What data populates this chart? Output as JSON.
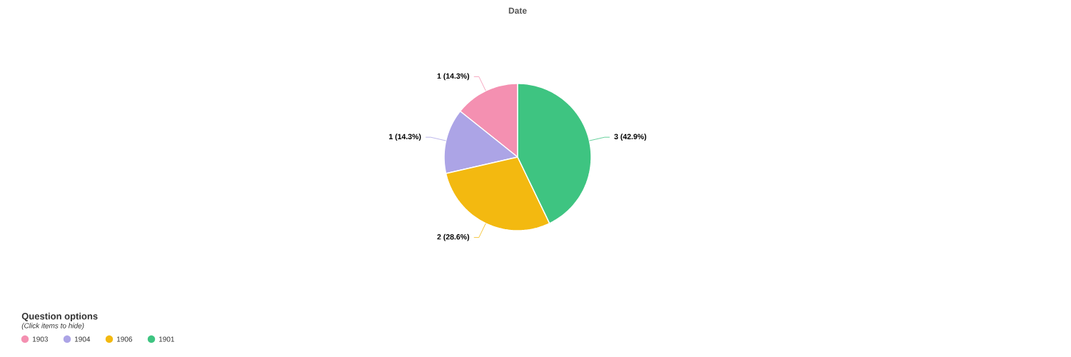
{
  "chart_data": {
    "type": "pie",
    "title": "Date",
    "categories": [
      "1903",
      "1904",
      "1906",
      "1901"
    ],
    "values": [
      1,
      1,
      2,
      3
    ],
    "colors": [
      "#f490b1",
      "#aca4e6",
      "#f3b910",
      "#3ec481"
    ],
    "value_labels": [
      "1 (14.3%)",
      "1 (14.3%)",
      "2 (28.6%)",
      "3 (42.9%)"
    ],
    "legend": "bottom left",
    "legend_title": "Question options",
    "annotations": [
      "(Click items to hide)"
    ]
  }
}
